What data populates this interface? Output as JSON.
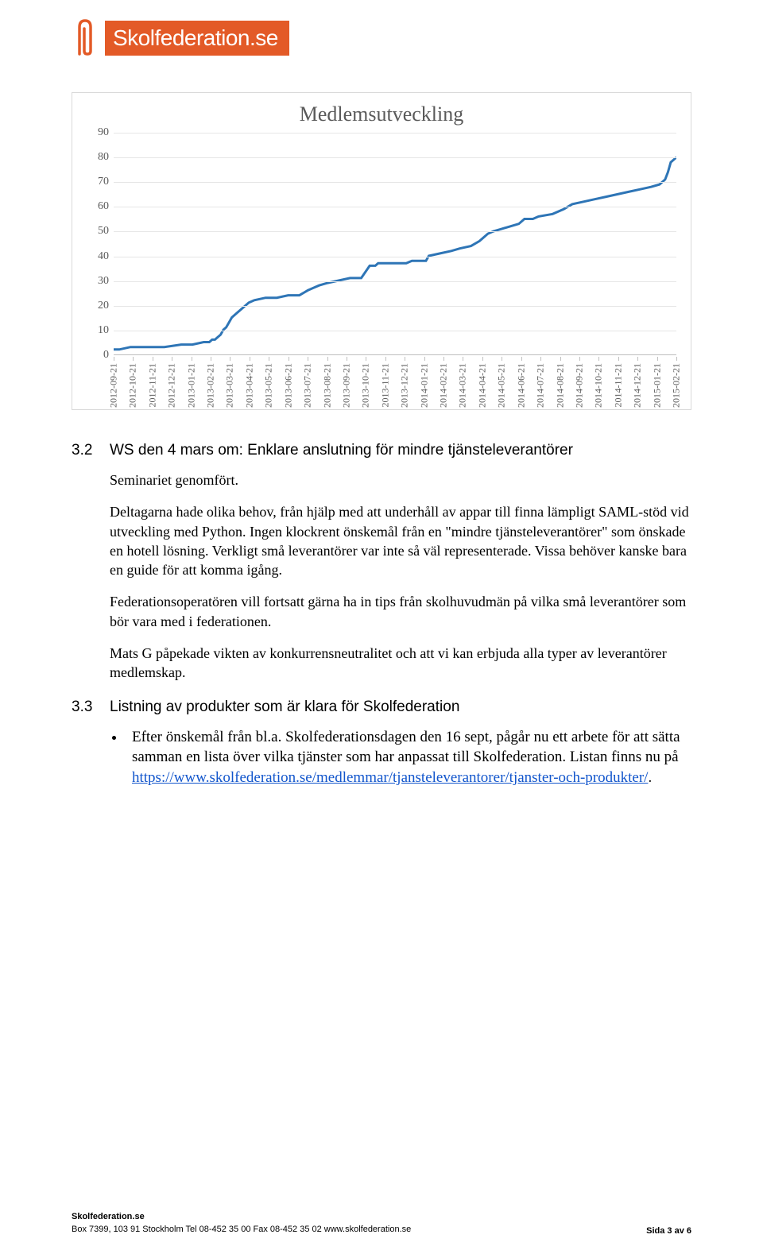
{
  "logo": {
    "clip_color": "#e35a27",
    "bg_color": "#e35a27",
    "text_color": "#ffffff",
    "text": "Skolfederation.se"
  },
  "chart": {
    "type": "line",
    "title": "Medlemsutveckling",
    "title_color": "#5a5a5a",
    "title_fontsize": 26,
    "border_color": "#d9d9d9",
    "background_color": "#ffffff",
    "grid_color": "#e6e6e6",
    "axis_color": "#bfbfbf",
    "label_color": "#5a5a5a",
    "label_fontsize": 14,
    "xlabel_fontsize": 12,
    "line_color": "#2e75b6",
    "line_width": 3,
    "ylim": [
      0,
      90
    ],
    "ytick_step": 10,
    "yticks": [
      0,
      10,
      20,
      30,
      40,
      50,
      60,
      70,
      80,
      90
    ],
    "x_categories": [
      "2012-09-21",
      "2012-10-21",
      "2012-11-21",
      "2012-12-21",
      "2013-01-21",
      "2013-02-21",
      "2013-03-21",
      "2013-04-21",
      "2013-05-21",
      "2013-06-21",
      "2013-07-21",
      "2013-08-21",
      "2013-09-21",
      "2013-10-21",
      "2013-11-21",
      "2013-12-21",
      "2014-01-21",
      "2014-02-21",
      "2014-03-21",
      "2014-04-21",
      "2014-05-21",
      "2014-06-21",
      "2014-07-21",
      "2014-08-21",
      "2014-09-21",
      "2014-10-21",
      "2014-11-21",
      "2014-12-21",
      "2015-01-21",
      "2015-02-21"
    ],
    "series": [
      {
        "x": 0.0,
        "y": 2
      },
      {
        "x": 0.01,
        "y": 2
      },
      {
        "x": 0.03,
        "y": 3
      },
      {
        "x": 0.06,
        "y": 3
      },
      {
        "x": 0.09,
        "y": 3
      },
      {
        "x": 0.12,
        "y": 4
      },
      {
        "x": 0.14,
        "y": 4
      },
      {
        "x": 0.16,
        "y": 5
      },
      {
        "x": 0.17,
        "y": 5
      },
      {
        "x": 0.175,
        "y": 6
      },
      {
        "x": 0.18,
        "y": 6
      },
      {
        "x": 0.185,
        "y": 7
      },
      {
        "x": 0.19,
        "y": 8
      },
      {
        "x": 0.195,
        "y": 10
      },
      {
        "x": 0.2,
        "y": 11
      },
      {
        "x": 0.205,
        "y": 13
      },
      {
        "x": 0.21,
        "y": 15
      },
      {
        "x": 0.22,
        "y": 17
      },
      {
        "x": 0.23,
        "y": 19
      },
      {
        "x": 0.24,
        "y": 21
      },
      {
        "x": 0.25,
        "y": 22
      },
      {
        "x": 0.27,
        "y": 23
      },
      {
        "x": 0.29,
        "y": 23
      },
      {
        "x": 0.31,
        "y": 24
      },
      {
        "x": 0.33,
        "y": 24
      },
      {
        "x": 0.345,
        "y": 26
      },
      {
        "x": 0.355,
        "y": 27
      },
      {
        "x": 0.365,
        "y": 28
      },
      {
        "x": 0.38,
        "y": 29
      },
      {
        "x": 0.4,
        "y": 30
      },
      {
        "x": 0.42,
        "y": 31
      },
      {
        "x": 0.44,
        "y": 31
      },
      {
        "x": 0.455,
        "y": 36
      },
      {
        "x": 0.465,
        "y": 36
      },
      {
        "x": 0.47,
        "y": 37
      },
      {
        "x": 0.52,
        "y": 37
      },
      {
        "x": 0.53,
        "y": 38
      },
      {
        "x": 0.555,
        "y": 38
      },
      {
        "x": 0.56,
        "y": 40
      },
      {
        "x": 0.58,
        "y": 41
      },
      {
        "x": 0.6,
        "y": 42
      },
      {
        "x": 0.615,
        "y": 43
      },
      {
        "x": 0.635,
        "y": 44
      },
      {
        "x": 0.65,
        "y": 46
      },
      {
        "x": 0.665,
        "y": 49
      },
      {
        "x": 0.675,
        "y": 50
      },
      {
        "x": 0.69,
        "y": 51
      },
      {
        "x": 0.705,
        "y": 52
      },
      {
        "x": 0.72,
        "y": 53
      },
      {
        "x": 0.73,
        "y": 55
      },
      {
        "x": 0.745,
        "y": 55
      },
      {
        "x": 0.755,
        "y": 56
      },
      {
        "x": 0.78,
        "y": 57
      },
      {
        "x": 0.8,
        "y": 59
      },
      {
        "x": 0.815,
        "y": 61
      },
      {
        "x": 0.835,
        "y": 62
      },
      {
        "x": 0.855,
        "y": 63
      },
      {
        "x": 0.875,
        "y": 64
      },
      {
        "x": 0.895,
        "y": 65
      },
      {
        "x": 0.915,
        "y": 66
      },
      {
        "x": 0.935,
        "y": 67
      },
      {
        "x": 0.955,
        "y": 68
      },
      {
        "x": 0.97,
        "y": 69
      },
      {
        "x": 0.98,
        "y": 71
      },
      {
        "x": 0.985,
        "y": 74
      },
      {
        "x": 0.99,
        "y": 78
      },
      {
        "x": 0.995,
        "y": 79
      },
      {
        "x": 1.0,
        "y": 80
      }
    ]
  },
  "section_3_2": {
    "num": "3.2",
    "title": "WS den 4 mars om: Enklare anslutning för mindre tjänsteleverantörer",
    "p1": "Seminariet genomfört.",
    "p2": "Deltagarna hade olika behov, från hjälp med att underhåll av appar till finna lämpligt SAML-stöd vid utveckling med Python. Ingen klockrent önskemål från en \"mindre tjänsteleverantörer\" som önskade en hotell lösning. Verkligt små leverantörer var inte så väl representerade. Vissa behöver kanske bara en guide för att komma igång.",
    "p3": "Federationsoperatören vill fortsatt gärna ha in tips från skolhuvudmän på vilka små leverantörer som bör vara med i federationen.",
    "p4": "Mats G påpekade vikten av konkurrensneutralitet och att vi kan erbjuda alla typer av leverantörer medlemskap."
  },
  "section_3_3": {
    "num": "3.3",
    "title": "Listning av produkter som är klara för Skolfederation",
    "bullet_pre": "Efter önskemål från bl.a. Skolfederationsdagen den 16 sept, pågår nu ett arbete för att sätta samman en lista över vilka tjänster som har anpassat till Skolfederation. Listan finns nu på ",
    "bullet_link": "https://www.skolfederation.se/medlemmar/tjansteleverantorer/tjanster-och-produkter/",
    "bullet_post": "."
  },
  "footer": {
    "line1": "Skolfederation.se",
    "line2": "Box 7399, 103 91 Stockholm Tel 08-452 35 00 Fax 08-452 35 02 www.skolfederation.se",
    "right": "Sida 3 av 6"
  }
}
